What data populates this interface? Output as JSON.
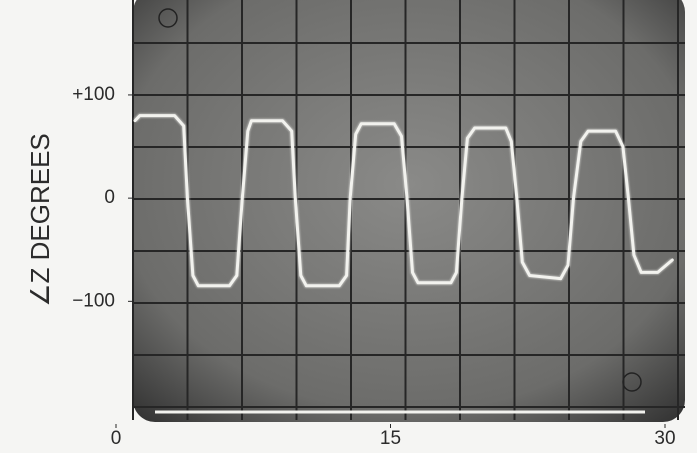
{
  "chart_data": {
    "type": "line",
    "y_label": "∠Z DEGREES",
    "x": [
      1.04,
      1.3,
      3.2,
      3.7,
      3.9,
      4.2,
      4.5,
      6.2,
      6.6,
      6.9,
      7.2,
      7.4,
      9.1,
      9.6,
      9.8,
      10.1,
      10.4,
      12.2,
      12.6,
      12.8,
      13.1,
      13.4,
      15.2,
      15.6,
      15.9,
      16.2,
      16.5,
      18.3,
      18.6,
      18.9,
      19.2,
      19.6,
      21.3,
      21.6,
      21.9,
      22.2,
      22.6,
      24.3,
      24.7,
      25.0,
      25.4,
      25.8,
      27.3,
      27.7,
      28.0,
      28.3,
      28.7,
      29.6,
      30.4
    ],
    "values": [
      75,
      80,
      80,
      70,
      0,
      -75,
      -85,
      -85,
      -75,
      0,
      65,
      75,
      75,
      65,
      0,
      -75,
      -85,
      -85,
      -75,
      0,
      62,
      72,
      72,
      60,
      0,
      -72,
      -82,
      -82,
      -72,
      0,
      58,
      68,
      68,
      55,
      0,
      -62,
      -75,
      -78,
      -65,
      0,
      55,
      65,
      65,
      50,
      0,
      -55,
      -72,
      -72,
      -60
    ],
    "color": "#f2f2ee",
    "xlim": [
      0,
      30
    ],
    "ylim": [
      -215,
      192
    ],
    "xticks": [
      0,
      15,
      30
    ],
    "yticks": [
      {
        "value": 100,
        "label": "+100"
      },
      0,
      {
        "value": -100,
        "label": "−100"
      }
    ]
  }
}
